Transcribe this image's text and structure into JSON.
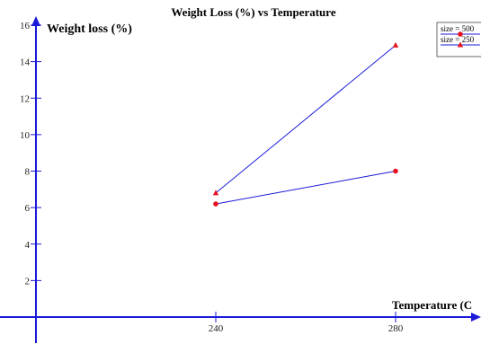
{
  "chart_data": {
    "type": "line",
    "title": "Weight Loss (%) vs Temperature",
    "xlabel": "Temperature (C",
    "ylabel": "Weight loss (%)",
    "x": [
      240,
      280
    ],
    "x_ticks": [
      240,
      280
    ],
    "x_tick_labels": [
      "240",
      "280"
    ],
    "xlim": [
      200,
      300
    ],
    "y_ticks": [
      2,
      4,
      6,
      8,
      10,
      12,
      14,
      16
    ],
    "y_tick_labels": [
      "2",
      "4",
      "6",
      "8",
      "10",
      "12",
      "14",
      "16"
    ],
    "ylim": [
      0,
      16
    ],
    "grid": false,
    "legend_position": "top-right",
    "series": [
      {
        "name": "size = 500",
        "x": [
          240,
          280
        ],
        "values": [
          6.2,
          8.0
        ],
        "marker": "circle",
        "line_color": "#1a1ad8",
        "marker_color": "#e8101e"
      },
      {
        "name": "size = 250",
        "x": [
          240,
          280
        ],
        "values": [
          6.8,
          14.9
        ],
        "marker": "triangle",
        "line_color": "#1a1ad8",
        "marker_color": "#e8101e"
      }
    ],
    "axis_color": "#1a1ad8"
  }
}
